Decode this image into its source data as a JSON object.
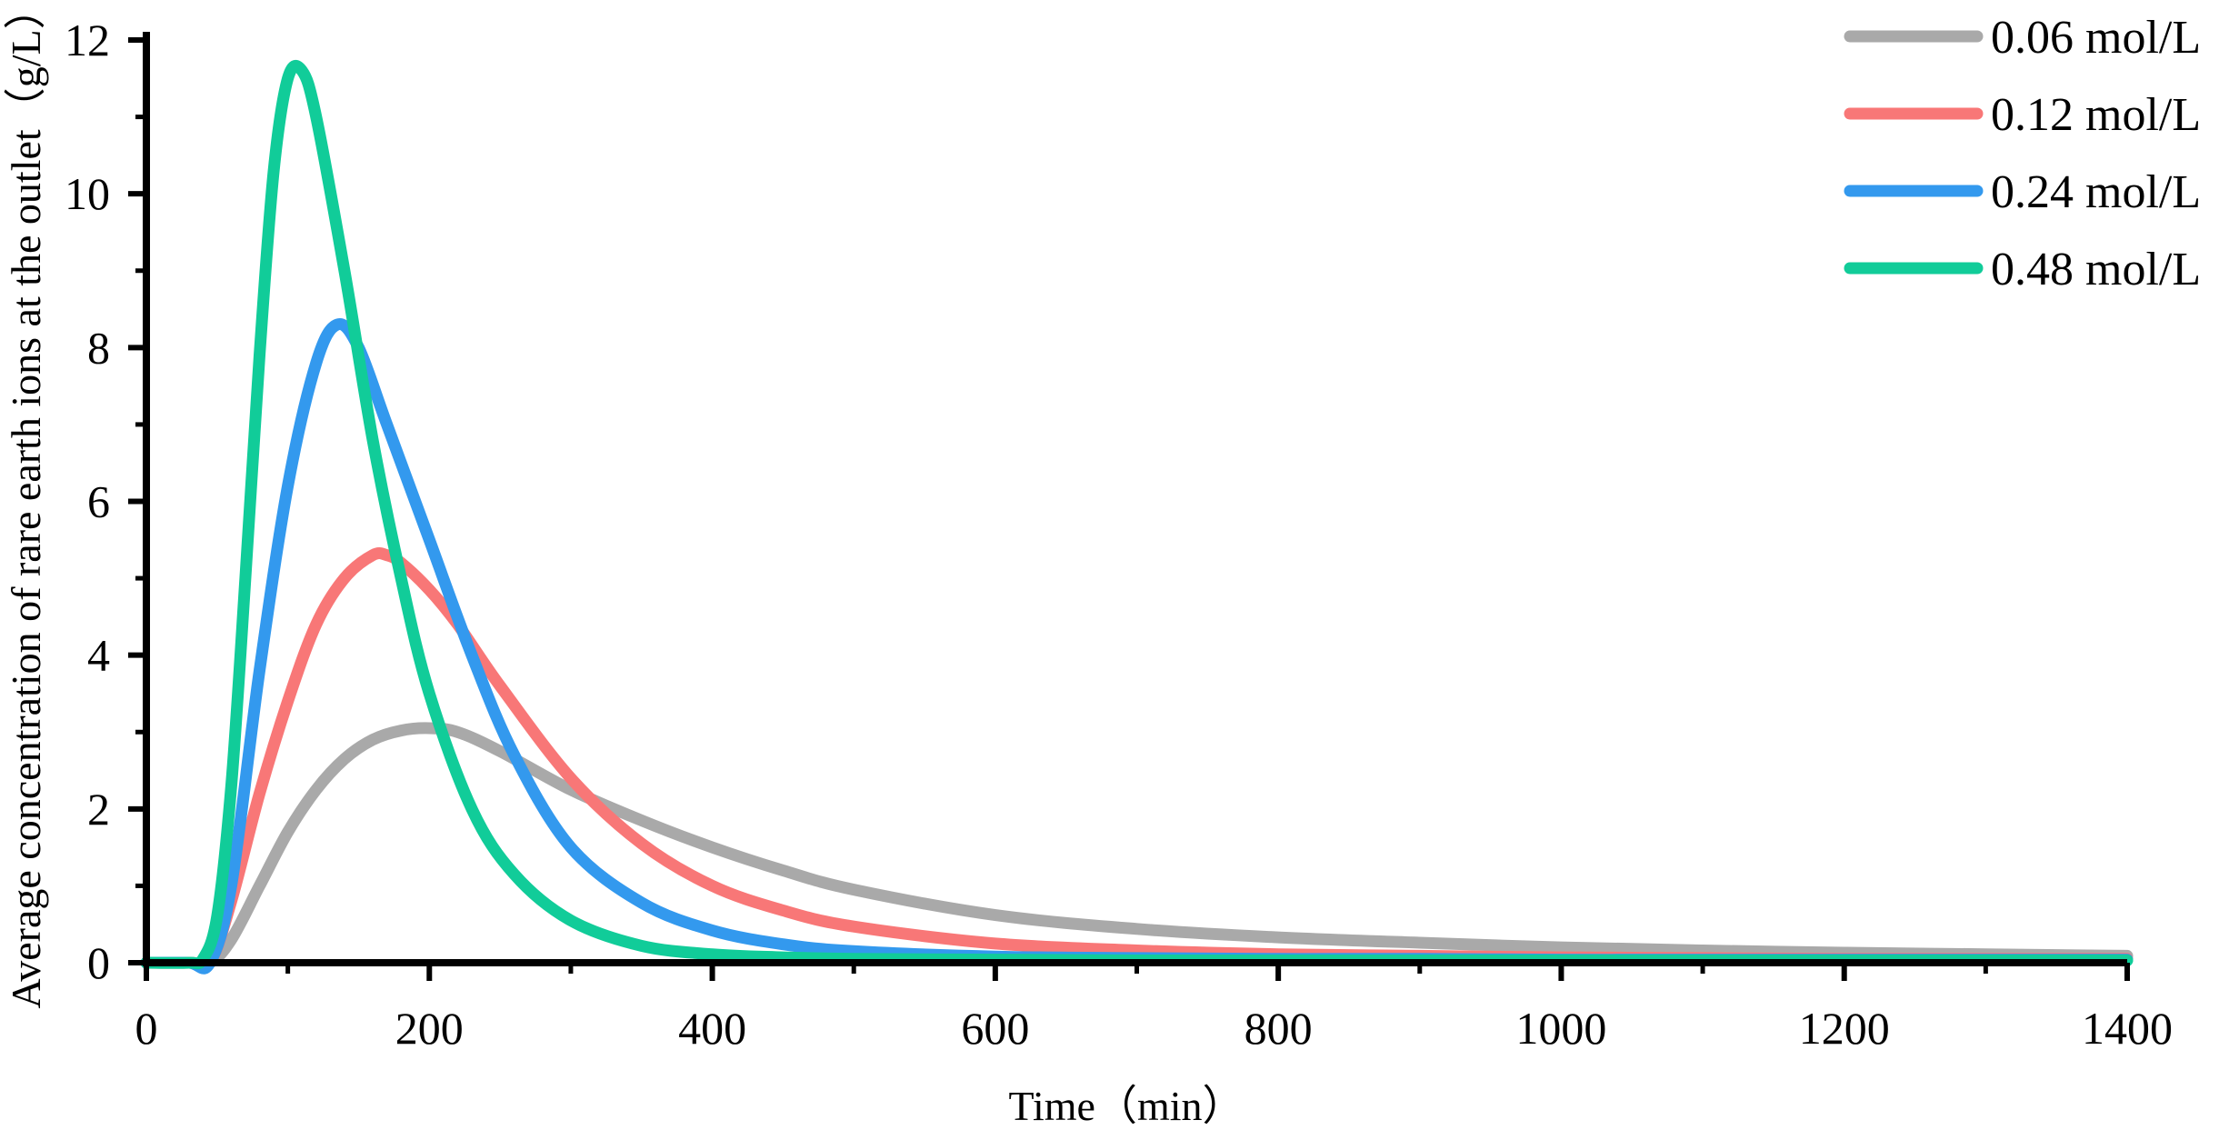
{
  "chart_data": {
    "type": "line",
    "title": "",
    "xlabel": "Time（min）",
    "ylabel": "Average concentration of rare earth ions at the outlet（g/L）",
    "xlim": [
      0,
      1400
    ],
    "ylim": [
      0,
      12
    ],
    "x_ticks": [
      "0",
      "200",
      "400",
      "600",
      "800",
      "1000",
      "1200",
      "1400"
    ],
    "y_ticks": [
      "0",
      "2",
      "4",
      "6",
      "8",
      "10",
      "12"
    ],
    "grid": false,
    "legend_position": "top-right",
    "series": [
      {
        "name": "0.06 mol/L",
        "color": "#a9a9a9",
        "x": [
          0,
          30,
          45,
          60,
          80,
          100,
          120,
          140,
          160,
          180,
          200,
          220,
          250,
          300,
          350,
          400,
          450,
          500,
          600,
          700,
          800,
          900,
          1000,
          1100,
          1200,
          1300,
          1400
        ],
        "y": [
          0,
          0,
          0,
          0.3,
          1.0,
          1.7,
          2.25,
          2.65,
          2.9,
          3.02,
          3.05,
          3.0,
          2.75,
          2.25,
          1.85,
          1.5,
          1.2,
          0.95,
          0.62,
          0.44,
          0.33,
          0.26,
          0.2,
          0.16,
          0.13,
          0.11,
          0.09
        ]
      },
      {
        "name": "0.12 mol/L",
        "color": "#f87777",
        "x": [
          0,
          30,
          45,
          60,
          80,
          100,
          120,
          140,
          160,
          170,
          180,
          200,
          220,
          250,
          300,
          350,
          400,
          450,
          500,
          600,
          700,
          800,
          900,
          1000,
          1100,
          1200,
          1300,
          1400
        ],
        "y": [
          0,
          0,
          0,
          0.8,
          2.2,
          3.4,
          4.4,
          5.0,
          5.3,
          5.3,
          5.2,
          4.85,
          4.4,
          3.6,
          2.4,
          1.55,
          1.0,
          0.68,
          0.47,
          0.25,
          0.16,
          0.11,
          0.09,
          0.07,
          0.06,
          0.05,
          0.05,
          0.05
        ]
      },
      {
        "name": "0.24 mol/L",
        "color": "#3399ee",
        "x": [
          0,
          30,
          45,
          60,
          80,
          100,
          120,
          135,
          150,
          170,
          200,
          230,
          260,
          300,
          350,
          400,
          450,
          500,
          600,
          700,
          800,
          900,
          1000,
          1100,
          1200,
          1300,
          1400
        ],
        "y": [
          0,
          0,
          0,
          1.0,
          3.8,
          6.2,
          7.8,
          8.3,
          8.0,
          7.0,
          5.5,
          4.0,
          2.7,
          1.5,
          0.78,
          0.42,
          0.24,
          0.15,
          0.08,
          0.06,
          0.05,
          0.05,
          0.04,
          0.04,
          0.04,
          0.04,
          0.04
        ]
      },
      {
        "name": "0.48 mol/L",
        "color": "#11cc99",
        "x": [
          0,
          30,
          40,
          50,
          60,
          70,
          80,
          90,
          100,
          110,
          120,
          140,
          160,
          180,
          200,
          230,
          260,
          300,
          350,
          400,
          450,
          500,
          600,
          700,
          800,
          900,
          1000,
          1100,
          1200,
          1300,
          1400
        ],
        "y": [
          0,
          0,
          0.05,
          0.6,
          2.3,
          5.0,
          7.9,
          10.3,
          11.5,
          11.6,
          11.0,
          9.0,
          6.8,
          5.0,
          3.5,
          2.0,
          1.15,
          0.55,
          0.22,
          0.11,
          0.07,
          0.05,
          0.04,
          0.03,
          0.03,
          0.03,
          0.03,
          0.03,
          0.03,
          0.03,
          0.03
        ]
      }
    ]
  }
}
